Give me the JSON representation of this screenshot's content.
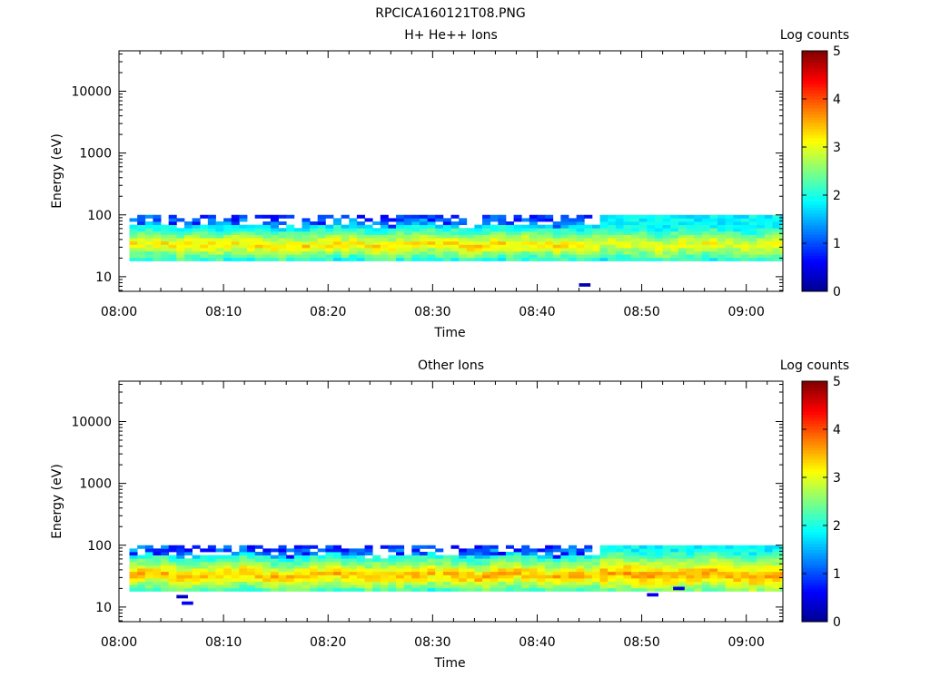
{
  "figure_title": "RPCICA160121T08.PNG",
  "colorscale": [
    "#00008f",
    "#0000ff",
    "#0080ff",
    "#00ffff",
    "#80ff80",
    "#ffff00",
    "#ff8000",
    "#ff0000",
    "#800000"
  ],
  "chart_data": [
    {
      "type": "heatmap",
      "title": "H+ He++ Ions",
      "xlabel": "Time",
      "ylabel": "Energy (eV)",
      "y_scale": "log",
      "ylim": [
        5.8,
        45000
      ],
      "x_tick_labels": [
        "08:00",
        "08:10",
        "08:20",
        "08:30",
        "08:40",
        "08:50",
        "09:00"
      ],
      "x_tick_minutes": [
        0,
        10,
        20,
        30,
        40,
        50,
        60
      ],
      "xlim_minutes": [
        0,
        63.5
      ],
      "y_tick_labels": [
        "10",
        "100",
        "1000",
        "10000"
      ],
      "y_tick_values": [
        10,
        100,
        1000,
        10000
      ],
      "colorbar": {
        "label": "Log counts",
        "range": [
          0,
          5
        ],
        "ticks": [
          "0",
          "1",
          "2",
          "3",
          "4",
          "5"
        ]
      },
      "data_time_range_minutes": [
        1,
        63.5
      ],
      "data_energy_range_eV": [
        18,
        100
      ],
      "peak_energy_eV": 33,
      "peak_log_counts": 3.3,
      "after_time_minutes": 45.5,
      "peak_log_counts_after": 3.1,
      "isolated_points": [
        {
          "minute": 44,
          "energy_eV": 7,
          "log_counts": 0.2
        }
      ]
    },
    {
      "type": "heatmap",
      "title": "Other Ions",
      "xlabel": "Time",
      "ylabel": "Energy (eV)",
      "y_scale": "log",
      "ylim": [
        5.8,
        45000
      ],
      "x_tick_labels": [
        "08:00",
        "08:10",
        "08:20",
        "08:30",
        "08:40",
        "08:50",
        "09:00"
      ],
      "x_tick_minutes": [
        0,
        10,
        20,
        30,
        40,
        50,
        60
      ],
      "xlim_minutes": [
        0,
        63.5
      ],
      "y_tick_labels": [
        "10",
        "100",
        "1000",
        "10000"
      ],
      "y_tick_values": [
        10,
        100,
        1000,
        10000
      ],
      "colorbar": {
        "label": "Log counts",
        "range": [
          0,
          5
        ],
        "ticks": [
          "0",
          "1",
          "2",
          "3",
          "4",
          "5"
        ]
      },
      "data_time_range_minutes": [
        1,
        63.5
      ],
      "data_energy_range_eV": [
        18,
        100
      ],
      "peak_energy_eV": 33,
      "peak_log_counts": 3.5,
      "after_time_minutes": 45.5,
      "peak_log_counts_after": 3.6,
      "isolated_points": [
        {
          "minute": 6,
          "energy_eV": 11,
          "log_counts": 0.6
        },
        {
          "minute": 50.5,
          "energy_eV": 15,
          "log_counts": 0.5
        },
        {
          "minute": 53,
          "energy_eV": 19,
          "log_counts": 0.4
        },
        {
          "minute": 5.5,
          "energy_eV": 14,
          "log_counts": 0.3
        }
      ]
    }
  ]
}
